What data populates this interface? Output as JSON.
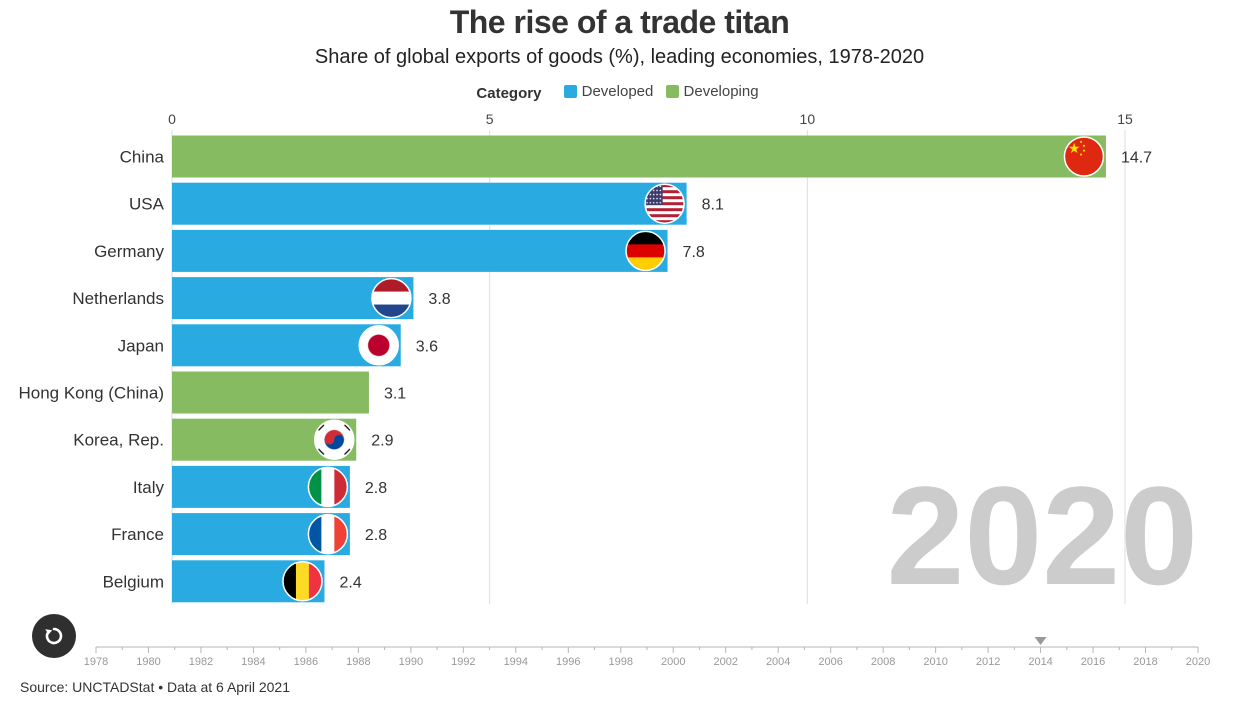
{
  "chart_data": {
    "type": "bar",
    "orientation": "horizontal",
    "title": "The rise of a trade titan",
    "subtitle": "Share of global exports of goods (%), leading economies, 1978-2020",
    "legend": {
      "title": "Category",
      "items": [
        {
          "name": "Developed",
          "color": "#29abe2"
        },
        {
          "name": "Developing",
          "color": "#87bb62"
        }
      ]
    },
    "xlim": [
      0,
      15
    ],
    "xticks": [
      0,
      5,
      10,
      15
    ],
    "year": "2020",
    "bars": [
      {
        "label": "China",
        "value": 14.7,
        "value_label": "14.7",
        "category": "Developing",
        "flag": "china-flag-icon"
      },
      {
        "label": "USA",
        "value": 8.1,
        "value_label": "8.1",
        "category": "Developed",
        "flag": "usa-flag-icon"
      },
      {
        "label": "Germany",
        "value": 7.8,
        "value_label": "7.8",
        "category": "Developed",
        "flag": "germany-flag-icon"
      },
      {
        "label": "Netherlands",
        "value": 3.8,
        "value_label": "3.8",
        "category": "Developed",
        "flag": "netherlands-flag-icon"
      },
      {
        "label": "Japan",
        "value": 3.6,
        "value_label": "3.6",
        "category": "Developed",
        "flag": "japan-flag-icon"
      },
      {
        "label": "Hong Kong (China)",
        "value": 3.1,
        "value_label": "3.1",
        "category": "Developing",
        "flag": ""
      },
      {
        "label": "Korea, Rep.",
        "value": 2.9,
        "value_label": "2.9",
        "category": "Developing",
        "flag": "korea-flag-icon"
      },
      {
        "label": "Italy",
        "value": 2.8,
        "value_label": "2.8",
        "category": "Developed",
        "flag": "italy-flag-icon"
      },
      {
        "label": "France",
        "value": 2.8,
        "value_label": "2.8",
        "category": "Developed",
        "flag": "france-flag-icon"
      },
      {
        "label": "Belgium",
        "value": 2.4,
        "value_label": "2.4",
        "category": "Developed",
        "flag": "belgium-flag-icon"
      }
    ],
    "timeline": {
      "start": 1978,
      "end": 2020,
      "labels": [
        "1978",
        "1980",
        "1982",
        "1984",
        "1986",
        "1988",
        "1990",
        "1992",
        "1994",
        "1996",
        "1998",
        "2000",
        "2002",
        "2004",
        "2006",
        "2008",
        "2010",
        "2012",
        "2014",
        "2016",
        "2018",
        "2020"
      ],
      "marker_year": 2014
    }
  },
  "controls": {
    "replay_icon": "replay-icon"
  },
  "footer": {
    "source": "Source: UNCTADStat • Data at 6 April 2021"
  }
}
